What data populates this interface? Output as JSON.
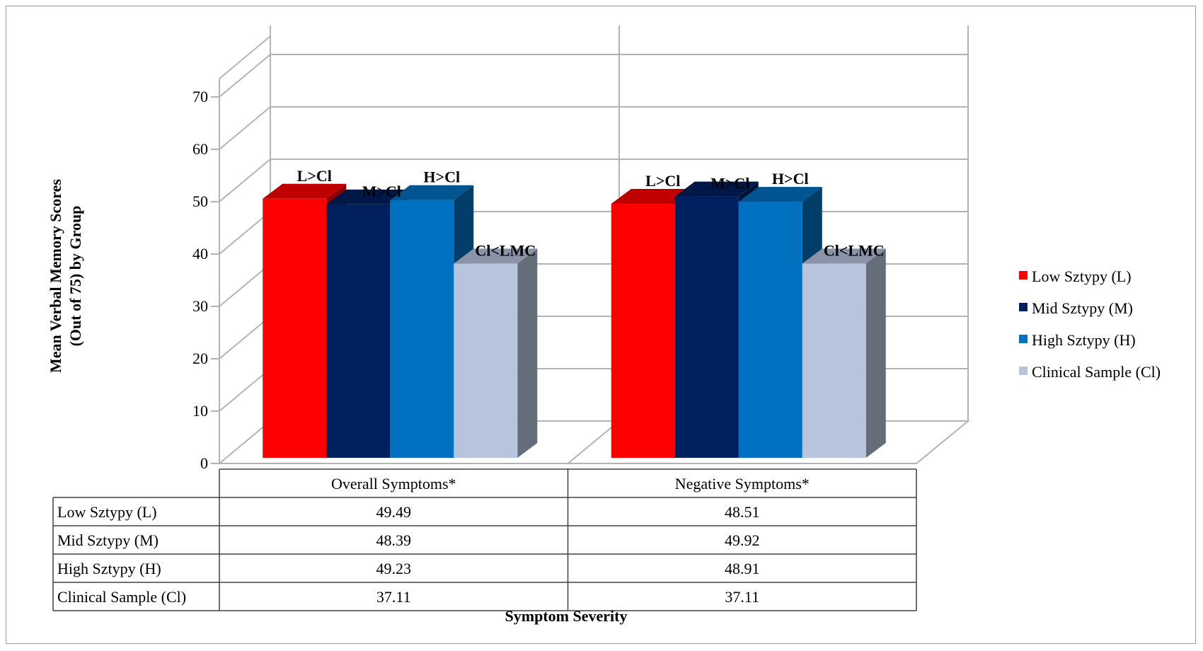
{
  "chart_data": {
    "type": "bar",
    "title": "",
    "xlabel": "Symptom Severity",
    "ylabel": [
      "Mean Verbal Memory Scores",
      "(Out of 75) by Group"
    ],
    "ylim": [
      0,
      70
    ],
    "yticks": [
      "0",
      "10",
      "20",
      "30",
      "40",
      "50",
      "60",
      "70"
    ],
    "grid": true,
    "legend_position": "right",
    "categories": [
      "Overall Symptoms*",
      "Negative Symptoms*"
    ],
    "series": [
      {
        "name": "Low Sztypy (L)",
        "values": [
          49.49,
          48.51
        ],
        "value_labels": [
          "49.49",
          "48.51"
        ],
        "annotations": [
          "L>Cl",
          "L>Cl"
        ],
        "color": "#ff0000"
      },
      {
        "name": "Mid Sztypy (M)",
        "values": [
          48.39,
          49.92
        ],
        "value_labels": [
          "48.39",
          "49.92"
        ],
        "annotations": [
          "M>Cl",
          "M>Cl"
        ],
        "color": "#002060"
      },
      {
        "name": "High Sztypy (H)",
        "values": [
          49.23,
          48.91
        ],
        "value_labels": [
          "49.23",
          "48.91"
        ],
        "annotations": [
          "H>Cl",
          "H>Cl"
        ],
        "color": "#0070c0"
      },
      {
        "name": "Clinical Sample (Cl)",
        "values": [
          37.11,
          37.11
        ],
        "value_labels": [
          "37.11",
          "37.11"
        ],
        "annotations": [
          "Cl<LMC",
          "Cl<LMC"
        ],
        "color": "#b8c4de"
      }
    ]
  }
}
